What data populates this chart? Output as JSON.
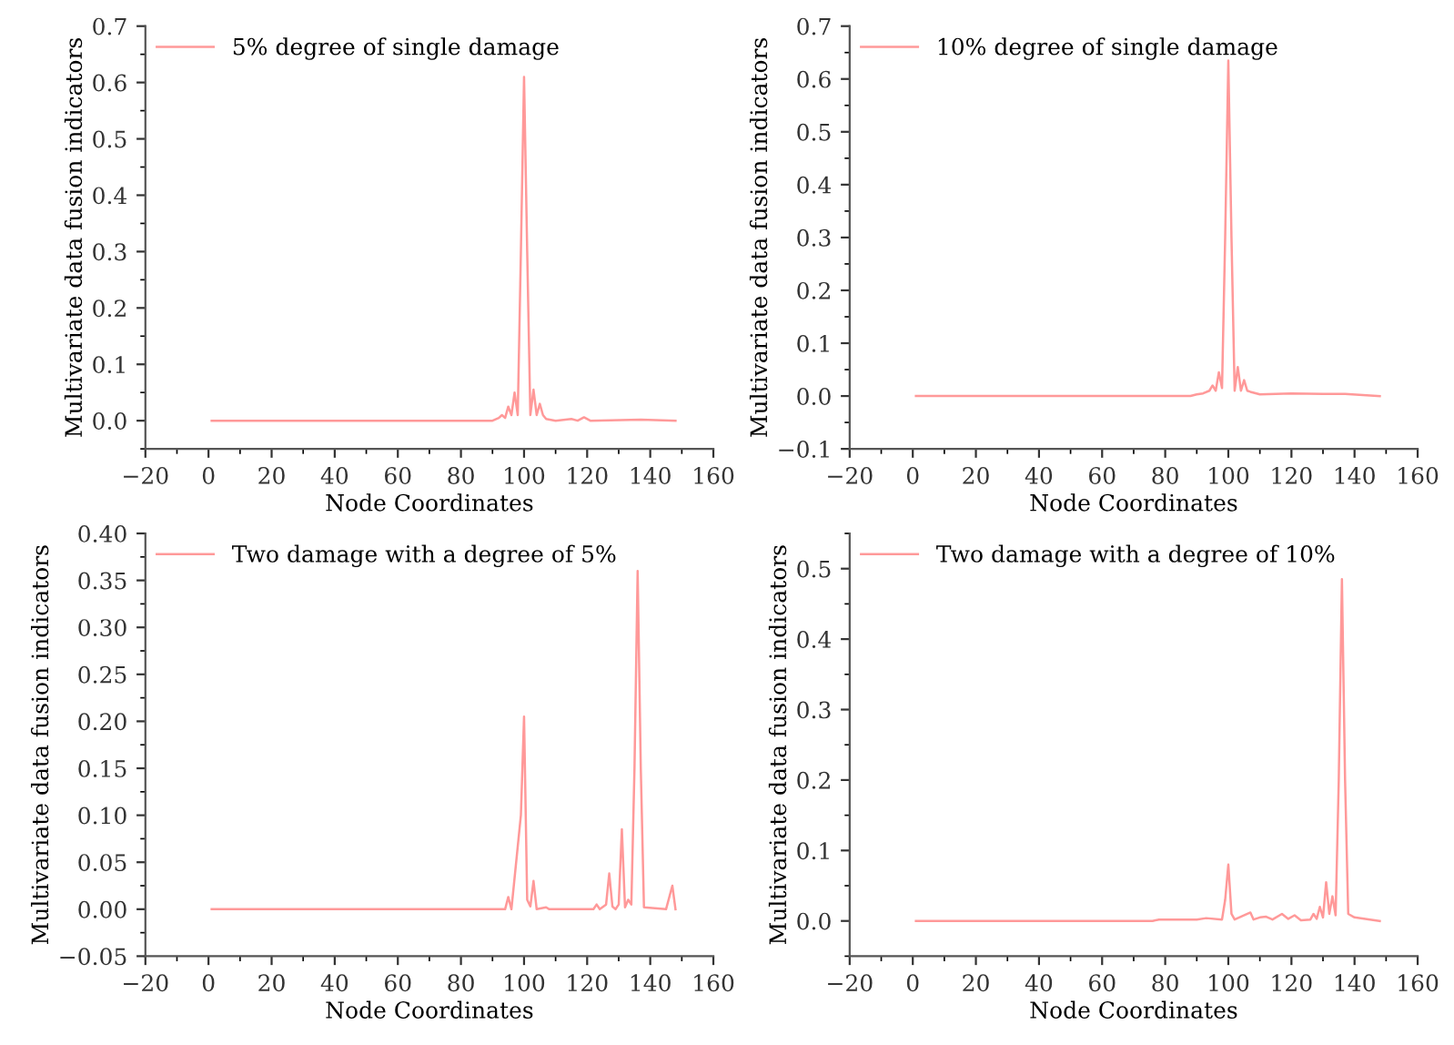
{
  "chart_data": [
    {
      "type": "line",
      "xlabel": "Node Coordinates",
      "ylabel": "Multivariate data fusion indicators",
      "xlim": [
        -20,
        160
      ],
      "xticks": [
        -20,
        0,
        20,
        40,
        60,
        80,
        100,
        120,
        140,
        160
      ],
      "ylim": [
        -0.05,
        0.7
      ],
      "yticks": [
        {
          "value": 0,
          "label": "0.0"
        },
        0.1,
        0.2,
        0.3,
        0.4,
        0.5,
        0.6,
        0.7
      ],
      "legend": "top left",
      "grid": false,
      "series": [
        {
          "name": "5% degree of single damage",
          "color": "#ff9999",
          "x": [
            1,
            90,
            92,
            93,
            94,
            95,
            96,
            97,
            98,
            99,
            100,
            101,
            102,
            103,
            104,
            105,
            106,
            107,
            110,
            115,
            117,
            119,
            121,
            137,
            148
          ],
          "values": [
            0,
            0,
            0.005,
            0.01,
            0.005,
            0.025,
            0.01,
            0.05,
            0.01,
            0.3,
            0.61,
            0.3,
            0.01,
            0.055,
            0.01,
            0.03,
            0.01,
            0.003,
            0,
            0.003,
            0,
            0.006,
            0,
            0.002,
            0
          ]
        }
      ]
    },
    {
      "type": "line",
      "xlabel": "Node Coordinates",
      "ylabel": "Multivariate data fusion indicators",
      "xlim": [
        -20,
        160
      ],
      "xticks": [
        -20,
        0,
        20,
        40,
        60,
        80,
        100,
        120,
        140,
        160
      ],
      "ylim": [
        -0.1,
        0.7
      ],
      "yticks": [
        {
          "value": -0.1,
          "label": "−0.1"
        },
        {
          "value": 0,
          "label": "0.0"
        },
        0.1,
        0.2,
        0.3,
        0.4,
        0.5,
        0.6,
        0.7
      ],
      "legend": "top left",
      "grid": false,
      "series": [
        {
          "name": "10% degree of single damage",
          "color": "#ff9999",
          "x": [
            1,
            88,
            90,
            92,
            94,
            95,
            96,
            97,
            98,
            99,
            100,
            101,
            102,
            103,
            104,
            105,
            106,
            107,
            110,
            120,
            130,
            137,
            148
          ],
          "values": [
            0,
            0,
            0.003,
            0.005,
            0.01,
            0.02,
            0.01,
            0.045,
            0.015,
            0.3,
            0.635,
            0.3,
            0.01,
            0.055,
            0.01,
            0.03,
            0.01,
            0.008,
            0.003,
            0.005,
            0.004,
            0.004,
            0
          ]
        }
      ]
    },
    {
      "type": "line",
      "xlabel": "Node Coordinates",
      "ylabel": "Multivariate data fusion indicators",
      "xlim": [
        -20,
        160
      ],
      "xticks": [
        -20,
        0,
        20,
        40,
        60,
        80,
        100,
        120,
        140,
        160
      ],
      "ylim": [
        -0.05,
        0.4
      ],
      "yticks": [
        {
          "value": -0.05,
          "label": "−0.05"
        },
        {
          "value": 0,
          "label": "0.00"
        },
        {
          "value": 0.05,
          "label": "0.05"
        },
        {
          "value": 0.1,
          "label": "0.10"
        },
        {
          "value": 0.15,
          "label": "0.15"
        },
        {
          "value": 0.2,
          "label": "0.20"
        },
        {
          "value": 0.25,
          "label": "0.25"
        },
        {
          "value": 0.3,
          "label": "0.30"
        },
        {
          "value": 0.35,
          "label": "0.35"
        },
        {
          "value": 0.4,
          "label": "0.40"
        }
      ],
      "legend": "top left",
      "grid": false,
      "series": [
        {
          "name": "Two damage with a degree of 5%",
          "color": "#ff9999",
          "x": [
            1,
            94,
            95,
            96,
            99,
            100,
            101,
            102,
            103,
            104,
            107,
            108,
            122,
            123,
            124,
            126,
            127,
            128,
            129,
            130,
            131,
            132,
            133,
            134,
            135,
            136,
            137,
            138,
            145,
            147,
            148
          ],
          "values": [
            0,
            0,
            0.013,
            0,
            0.1,
            0.205,
            0.01,
            0.003,
            0.03,
            0,
            0.002,
            0,
            0,
            0.005,
            0,
            0.005,
            0.038,
            0.003,
            0,
            0.005,
            0.085,
            0.002,
            0.01,
            0.005,
            0.15,
            0.36,
            0.15,
            0.002,
            0,
            0.025,
            0
          ]
        }
      ]
    },
    {
      "type": "line",
      "xlabel": "Node Coordinates",
      "ylabel": "Multivariate data fusion indicators",
      "xlim": [
        -20,
        160
      ],
      "xticks": [
        -20,
        0,
        20,
        40,
        60,
        80,
        100,
        120,
        140,
        160
      ],
      "ylim": [
        -0.05,
        0.55
      ],
      "yticks": [
        {
          "value": 0,
          "label": "0.0"
        },
        0.1,
        0.2,
        0.3,
        0.4,
        0.5
      ],
      "legend": "top left",
      "grid": false,
      "series": [
        {
          "name": "Two damage with a degree of 10%",
          "color": "#ff9999",
          "x": [
            1,
            76,
            78,
            80,
            85,
            90,
            93,
            98,
            99,
            100,
            101,
            102,
            107,
            108,
            110,
            112,
            114,
            117,
            119,
            121,
            123,
            126,
            127,
            128,
            129,
            130,
            131,
            132,
            133,
            134,
            135,
            136,
            137,
            138,
            140,
            148
          ],
          "values": [
            0,
            0,
            0.002,
            0.002,
            0.002,
            0.002,
            0.004,
            0.002,
            0.03,
            0.08,
            0.01,
            0.002,
            0.012,
            0.002,
            0.005,
            0.006,
            0.002,
            0.01,
            0.003,
            0.008,
            0.001,
            0.002,
            0.01,
            0.003,
            0.02,
            0.005,
            0.055,
            0.01,
            0.035,
            0.008,
            0.2,
            0.485,
            0.2,
            0.01,
            0.005,
            0
          ]
        }
      ]
    }
  ]
}
